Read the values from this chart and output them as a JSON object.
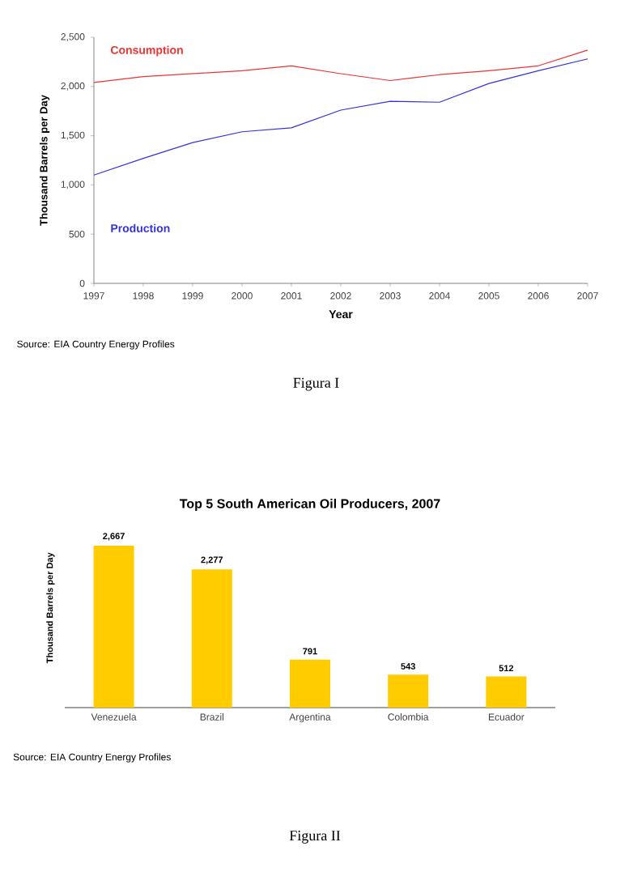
{
  "chart_data": [
    {
      "type": "line",
      "x": [
        1997,
        1998,
        1999,
        2000,
        2001,
        2002,
        2003,
        2004,
        2005,
        2006,
        2007
      ],
      "xlabel": "Year",
      "ylabel": "Thousand Barrels per Day",
      "xlim": [
        1997,
        2007
      ],
      "ylim": [
        0,
        2500
      ],
      "xticks": [
        1997,
        1998,
        1999,
        2000,
        2001,
        2002,
        2003,
        2004,
        2005,
        2006,
        2007
      ],
      "yticks": [
        0,
        500,
        {
          "value": 1000,
          "label": "1,000"
        },
        {
          "value": 1500,
          "label": "1,500"
        },
        {
          "value": 2000,
          "label": "2,000"
        },
        {
          "value": 2500,
          "label": "2,500"
        }
      ],
      "series": [
        {
          "name": "Consumption",
          "color": "#ee3333",
          "values": [
            2040,
            2100,
            2130,
            2160,
            2210,
            2130,
            2060,
            2120,
            2160,
            2210,
            2370
          ]
        },
        {
          "name": "Production",
          "color": "#3333dd",
          "values": [
            1100,
            1270,
            1430,
            1540,
            1580,
            1760,
            1850,
            1840,
            2030,
            2160,
            2280
          ]
        }
      ],
      "legend": false,
      "grid": false,
      "marker": "none",
      "annotations": [
        "Source: EIA Country Energy Profiles",
        "Figura I"
      ]
    },
    {
      "type": "bar",
      "title": "Top 5 South American Oil Producers, 2007",
      "ylabel": "Thousand Barrels per Day",
      "categories": [
        "Venezuela",
        "Brazil",
        "Argentina",
        "Colombia",
        "Ecuador"
      ],
      "values": [
        2667,
        2277,
        791,
        543,
        512
      ],
      "color": "#ffcc00",
      "value_labels": [
        "2,667",
        "2,277",
        "791",
        "543",
        "512"
      ],
      "annotations": [
        "Source: EIA Country Energy Profiles",
        "Figura II"
      ]
    }
  ]
}
